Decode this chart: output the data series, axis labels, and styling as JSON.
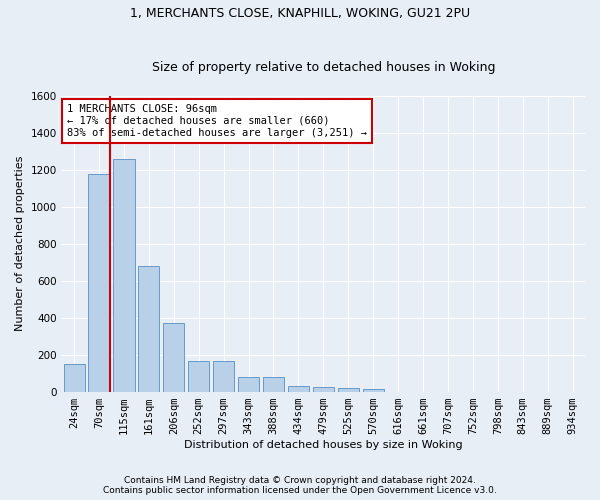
{
  "title1": "1, MERCHANTS CLOSE, KNAPHILL, WOKING, GU21 2PU",
  "title2": "Size of property relative to detached houses in Woking",
  "xlabel": "Distribution of detached houses by size in Woking",
  "ylabel": "Number of detached properties",
  "categories": [
    "24sqm",
    "70sqm",
    "115sqm",
    "161sqm",
    "206sqm",
    "252sqm",
    "297sqm",
    "343sqm",
    "388sqm",
    "434sqm",
    "479sqm",
    "525sqm",
    "570sqm",
    "616sqm",
    "661sqm",
    "707sqm",
    "752sqm",
    "798sqm",
    "843sqm",
    "889sqm",
    "934sqm"
  ],
  "values": [
    150,
    1175,
    1260,
    680,
    375,
    170,
    170,
    80,
    80,
    35,
    30,
    22,
    15,
    0,
    0,
    0,
    0,
    0,
    0,
    0,
    0
  ],
  "bar_color": "#b8d0e8",
  "bar_edge_color": "#6699cc",
  "vline_color": "#cc0000",
  "annotation_text": "1 MERCHANTS CLOSE: 96sqm\n← 17% of detached houses are smaller (660)\n83% of semi-detached houses are larger (3,251) →",
  "annotation_box_color": "#ffffff",
  "annotation_box_edge": "#cc0000",
  "ylim": [
    0,
    1600
  ],
  "yticks": [
    0,
    200,
    400,
    600,
    800,
    1000,
    1200,
    1400,
    1600
  ],
  "footer1": "Contains HM Land Registry data © Crown copyright and database right 2024.",
  "footer2": "Contains public sector information licensed under the Open Government Licence v3.0.",
  "bg_color": "#e8eef6",
  "grid_color": "#ffffff",
  "title1_fontsize": 9,
  "title2_fontsize": 9,
  "axis_label_fontsize": 8,
  "tick_fontsize": 7.5,
  "footer_fontsize": 6.5
}
